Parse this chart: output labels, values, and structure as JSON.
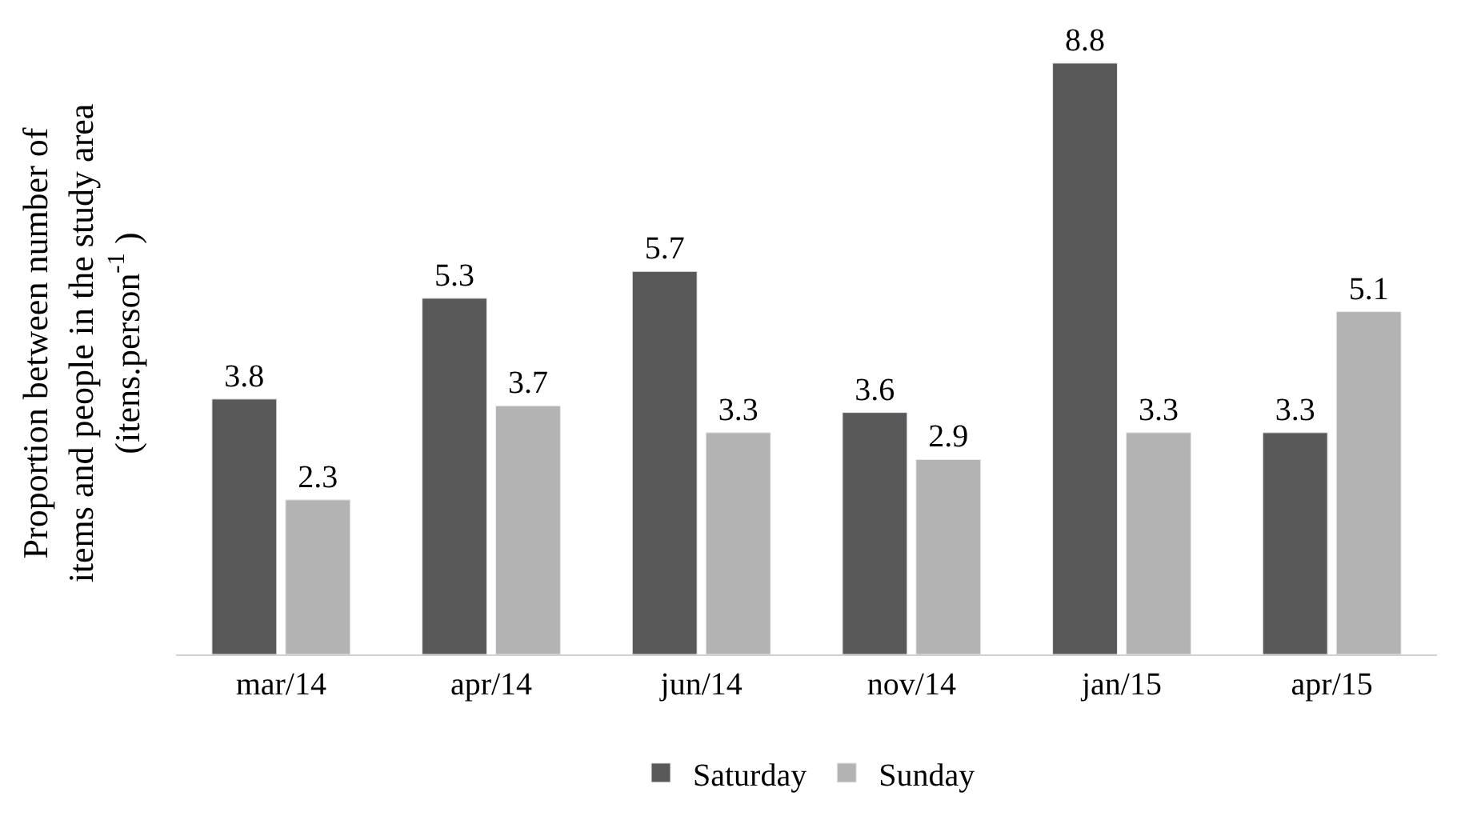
{
  "chart_data": {
    "type": "bar",
    "ylabel": "Proportion between number of\nitems and people in the study area\n(itens.person$^{-1}$ )",
    "categories": [
      "mar/14",
      "apr/14",
      "jun/14",
      "nov/14",
      "jan/15",
      "apr/15"
    ],
    "series": [
      {
        "name": "Saturday",
        "color": "#595959",
        "values": [
          3.8,
          5.3,
          5.7,
          3.6,
          8.8,
          3.3
        ]
      },
      {
        "name": "Sunday",
        "color": "#b3b3b3",
        "values": [
          2.3,
          3.7,
          3.3,
          2.9,
          3.3,
          5.1
        ]
      }
    ],
    "data_labels": true,
    "legend": "bottom",
    "tick_labels": "x"
  }
}
